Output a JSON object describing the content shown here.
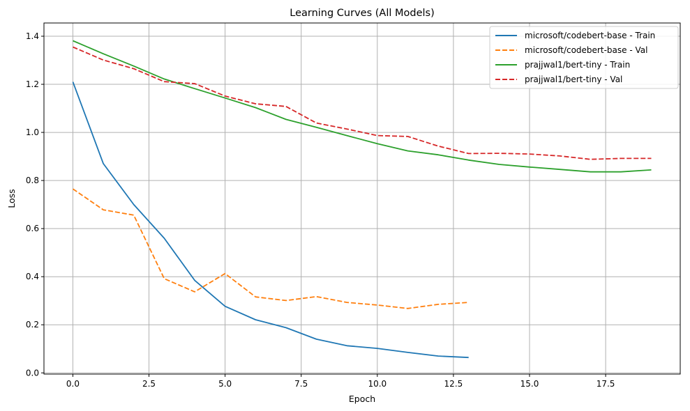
{
  "chart_data": {
    "type": "line",
    "title": "Learning Curves (All Models)",
    "xlabel": "Epoch",
    "ylabel": "Loss",
    "xlim": [
      -0.95,
      19.95
    ],
    "ylim": [
      -0.005,
      1.455
    ],
    "xticks": [
      0.0,
      2.5,
      5.0,
      7.5,
      10.0,
      12.5,
      15.0,
      17.5
    ],
    "xtick_labels": [
      "0.0",
      "2.5",
      "5.0",
      "7.5",
      "10.0",
      "12.5",
      "15.0",
      "17.5"
    ],
    "yticks": [
      0.0,
      0.2,
      0.4,
      0.6,
      0.8,
      1.0,
      1.2,
      1.4
    ],
    "ytick_labels": [
      "0.0",
      "0.2",
      "0.4",
      "0.6",
      "0.8",
      "1.0",
      "1.2",
      "1.4"
    ],
    "grid": true,
    "legend_position": "top-right",
    "series": [
      {
        "name": "microsoft/codebert-base - Train",
        "color": "#1f77b4",
        "dash": "solid",
        "x": [
          0,
          1,
          2,
          3,
          4,
          5,
          6,
          7,
          8,
          9,
          10,
          11,
          12,
          13
        ],
        "values": [
          1.21,
          0.87,
          0.7,
          0.56,
          0.385,
          0.277,
          0.221,
          0.188,
          0.14,
          0.113,
          0.102,
          0.085,
          0.07,
          0.064
        ]
      },
      {
        "name": "microsoft/codebert-base - Val",
        "color": "#ff7f0e",
        "dash": "dashed",
        "x": [
          0,
          1,
          2,
          3,
          4,
          5,
          6,
          7,
          8,
          9,
          10,
          11,
          12,
          13
        ],
        "values": [
          0.765,
          0.678,
          0.656,
          0.392,
          0.337,
          0.413,
          0.316,
          0.301,
          0.317,
          0.293,
          0.282,
          0.268,
          0.285,
          0.293
        ]
      },
      {
        "name": "prajjwal1/bert-tiny - Train",
        "color": "#2ca02c",
        "dash": "solid",
        "x": [
          0,
          1,
          2,
          3,
          4,
          5,
          6,
          7,
          8,
          9,
          10,
          11,
          12,
          13,
          14,
          15,
          16,
          17,
          18,
          19
        ],
        "values": [
          1.381,
          1.327,
          1.276,
          1.222,
          1.182,
          1.143,
          1.103,
          1.054,
          1.021,
          0.987,
          0.953,
          0.923,
          0.907,
          0.885,
          0.867,
          0.856,
          0.846,
          0.836,
          0.836,
          0.844
        ]
      },
      {
        "name": "prajjwal1/bert-tiny - Val",
        "color": "#d62728",
        "dash": "dashed",
        "x": [
          0,
          1,
          2,
          3,
          4,
          5,
          6,
          7,
          8,
          9,
          10,
          11,
          12,
          13,
          14,
          15,
          16,
          17,
          18,
          19
        ],
        "values": [
          1.355,
          1.301,
          1.265,
          1.211,
          1.203,
          1.151,
          1.119,
          1.108,
          1.039,
          1.014,
          0.987,
          0.983,
          0.943,
          0.912,
          0.913,
          0.91,
          0.902,
          0.888,
          0.892,
          0.892
        ]
      }
    ]
  }
}
